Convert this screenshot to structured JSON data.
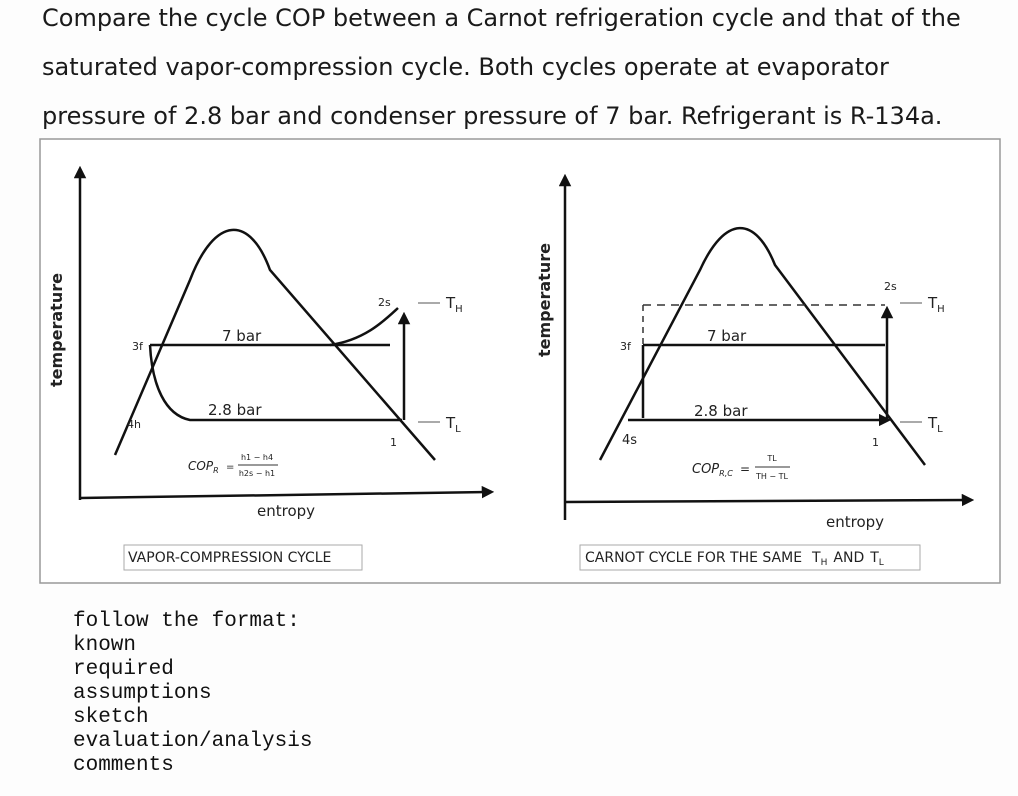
{
  "question": {
    "lines": [
      "Compare the cycle COP between a Carnot refrigeration cycle and that of the",
      "saturated vapor-compression cycle. Both cycles operate at evaporator",
      "pressure of 2.8 bar and condenser pressure of 7 bar. Refrigerant is R-134a."
    ]
  },
  "figure": {
    "left": {
      "y_axis": "temperature",
      "x_axis": "entropy",
      "state_3": "3f",
      "state_4": "4h",
      "state_1": "1",
      "state_2": "2s",
      "high_pressure": "7 bar",
      "low_pressure": "2.8 bar",
      "t_high": {
        "main": "T",
        "sub": "H"
      },
      "t_low": {
        "main": "T",
        "sub": "L"
      },
      "cop": {
        "lhs": "COP",
        "lhs_sub": "R",
        "equals": "=",
        "num": "h1 − h4",
        "den": "h2s − h1"
      },
      "caption": "VAPOR-COMPRESSION CYCLE"
    },
    "right": {
      "y_axis": "temperature",
      "x_axis": "entropy",
      "state_3": "3f",
      "state_4": "4s",
      "state_1": "1",
      "state_2": "2s",
      "high_pressure": "7 bar",
      "low_pressure": "2.8 bar",
      "t_high": {
        "main": "T",
        "sub": "H"
      },
      "t_low": {
        "main": "T",
        "sub": "L"
      },
      "cop": {
        "lhs": "COP",
        "lhs_sub": "R,C",
        "equals": "=",
        "num": "TL",
        "den": "TH − TL"
      },
      "caption": {
        "text": "CARNOT CYCLE FOR THE SAME",
        "t_high": {
          "main": "T",
          "sub": "H"
        },
        "and": "AND",
        "t_low": {
          "main": "T",
          "sub": "L"
        }
      }
    }
  },
  "format": {
    "heading": "follow the format:",
    "items": [
      "known",
      "required",
      "assumptions",
      "sketch",
      "evaluation/analysis",
      "comments"
    ]
  }
}
